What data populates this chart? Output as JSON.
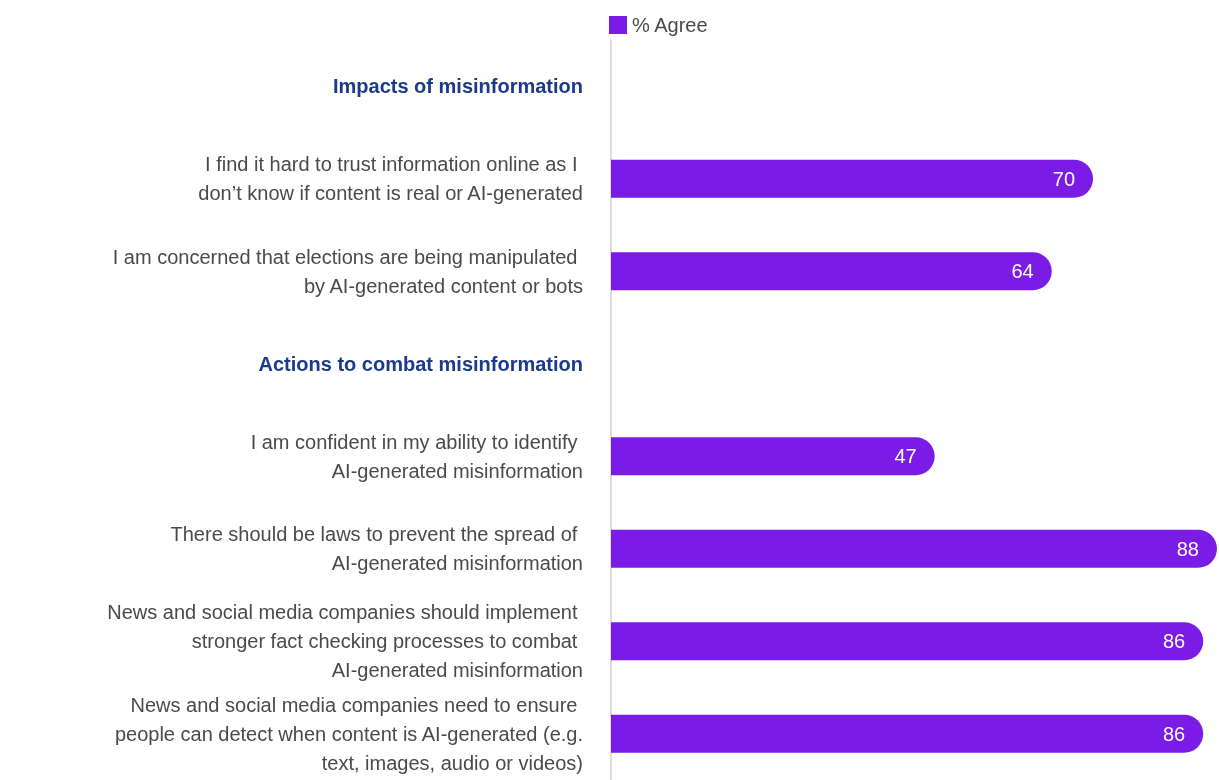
{
  "chart_data": {
    "type": "bar",
    "orientation": "horizontal",
    "categories": [
      "Impacts of misinformation",
      "I find it hard to trust information online as I don’t know if content is real or AI-generated",
      "I am concerned that elections are being manipulated by AI-generated content or bots",
      "Actions to combat misinformation",
      "I am confident in my ability to identify AI-generated misinformation",
      "There should be laws to prevent the spread of AI-generated misinformation",
      "News and social media companies should implement stronger fact checking processes to combat AI-generated misinformation",
      "News and social media companies need to ensure people can detect when content is AI-generated (e.g. text, images, audio or videos)"
    ],
    "series": [
      {
        "name": "% Agree",
        "color": "#7a1be6",
        "values": [
          null,
          70,
          64,
          null,
          47,
          88,
          86,
          86
        ]
      }
    ],
    "data_labels": true,
    "legend": "top"
  }
}
